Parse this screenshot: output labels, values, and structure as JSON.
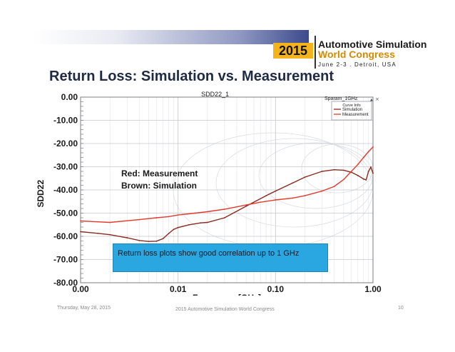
{
  "slide": {
    "title": "Return Loss: Simulation vs. Measurement",
    "logo": {
      "year": "2015",
      "line1": "Automotive Simulation",
      "line2": "World Congress",
      "line3": "June 2-3 . Detroit, USA"
    },
    "footer": {
      "date": "Thursday, May 28, 2015",
      "conference": "2015 Automotive Simulation World Congress",
      "page": "10"
    },
    "annotations": {
      "red_label": "Red: Measurement",
      "brown_label": "Brown: Simulation",
      "callout": "Return loss plots show good correlation up to 1 GHz"
    },
    "colors": {
      "logo_year_bg": "#f5b31b",
      "callout_bg": "#2aa6e0",
      "measurement": "#e23b2e",
      "simulation": "#8b2a1e"
    }
  },
  "chart_data": {
    "type": "line",
    "title": "SDD22_1",
    "xlabel": "Frequency [GHz]",
    "ylabel": "SDD22",
    "xscale": "log",
    "xlim": [
      0.001,
      1.0
    ],
    "ylim": [
      -80,
      0
    ],
    "x_ticks": [
      0.001,
      0.01,
      0.1,
      1.0
    ],
    "x_tick_labels": [
      "0.00",
      "0.01",
      "0.10",
      "1.00"
    ],
    "y_ticks": [
      0,
      -10,
      -20,
      -30,
      -40,
      -50,
      -60,
      -70,
      -80
    ],
    "y_tick_labels": [
      "0.00",
      "-10.00",
      "-20.00",
      "-30.00",
      "-40.00",
      "-50.00",
      "-60.00",
      "-70.00",
      "-80.00"
    ],
    "grid": true,
    "legend": {
      "placement": "top-right",
      "header": "Sparam_1GHz",
      "subheader": "Curve Info",
      "entries": [
        "Simulation",
        "Measurement"
      ]
    },
    "series": [
      {
        "name": "Simulation",
        "color": "#8b2a1e",
        "x": [
          0.001,
          0.0015,
          0.002,
          0.003,
          0.004,
          0.005,
          0.006,
          0.007,
          0.008,
          0.009,
          0.01,
          0.013,
          0.017,
          0.02,
          0.03,
          0.05,
          0.08,
          0.1,
          0.15,
          0.2,
          0.3,
          0.4,
          0.5,
          0.6,
          0.7,
          0.8,
          0.85,
          0.9,
          0.95,
          1.0
        ],
        "values": [
          -58,
          -58.7,
          -59.3,
          -60.6,
          -61.8,
          -62.2,
          -62.1,
          -61,
          -58.8,
          -57,
          -56.2,
          -55,
          -54.2,
          -54,
          -52,
          -47,
          -42.5,
          -40.5,
          -37,
          -34.5,
          -32,
          -31.3,
          -31.5,
          -32.4,
          -33.8,
          -35.3,
          -35.7,
          -32,
          -30.2,
          -32.8
        ]
      },
      {
        "name": "Measurement",
        "color": "#e23b2e",
        "x": [
          0.001,
          0.002,
          0.004,
          0.006,
          0.008,
          0.01,
          0.015,
          0.02,
          0.03,
          0.05,
          0.07,
          0.1,
          0.15,
          0.2,
          0.3,
          0.4,
          0.5,
          0.6,
          0.7,
          0.8,
          0.9,
          1.0
        ],
        "values": [
          -53.4,
          -54,
          -52.8,
          -52,
          -51.5,
          -50.8,
          -50,
          -49.4,
          -48.3,
          -46.5,
          -45.3,
          -44.3,
          -43.5,
          -42.5,
          -40.5,
          -38.5,
          -35.5,
          -32,
          -29,
          -26,
          -23.5,
          -21.5
        ]
      }
    ]
  }
}
